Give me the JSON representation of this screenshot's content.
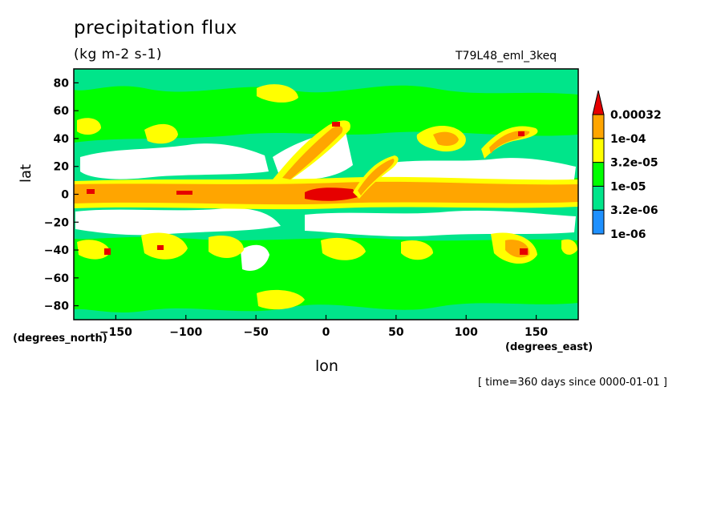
{
  "chart_data": {
    "type": "heatmap",
    "title": "precipitation flux",
    "units": "(kg m-2 s-1)",
    "experiment": "T79L48_eml_3keq",
    "xlabel": "lon",
    "ylabel": "lat",
    "x_units": "(degrees_east)",
    "y_units": "(degrees_north)",
    "timestamp": "[ time=360 days since 0000-01-01 ]",
    "xlim": [
      -180,
      180
    ],
    "ylim": [
      -90,
      90
    ],
    "x_ticks": [
      -150,
      -100,
      -50,
      0,
      50,
      100,
      150
    ],
    "y_ticks": [
      -80,
      -60,
      -40,
      -20,
      0,
      20,
      40,
      60,
      80
    ],
    "grid": false,
    "colorbar": {
      "placement": "right",
      "levels": [
        "1e-06",
        "3.2e-06",
        "1e-05",
        "3.2e-05",
        "1e-04",
        "0.00032"
      ],
      "colors": [
        "#ffffff",
        "#1e90ff",
        "#00e58a",
        "#00ff00",
        "#ffff00",
        "#ffa500",
        "#e60000"
      ]
    }
  }
}
